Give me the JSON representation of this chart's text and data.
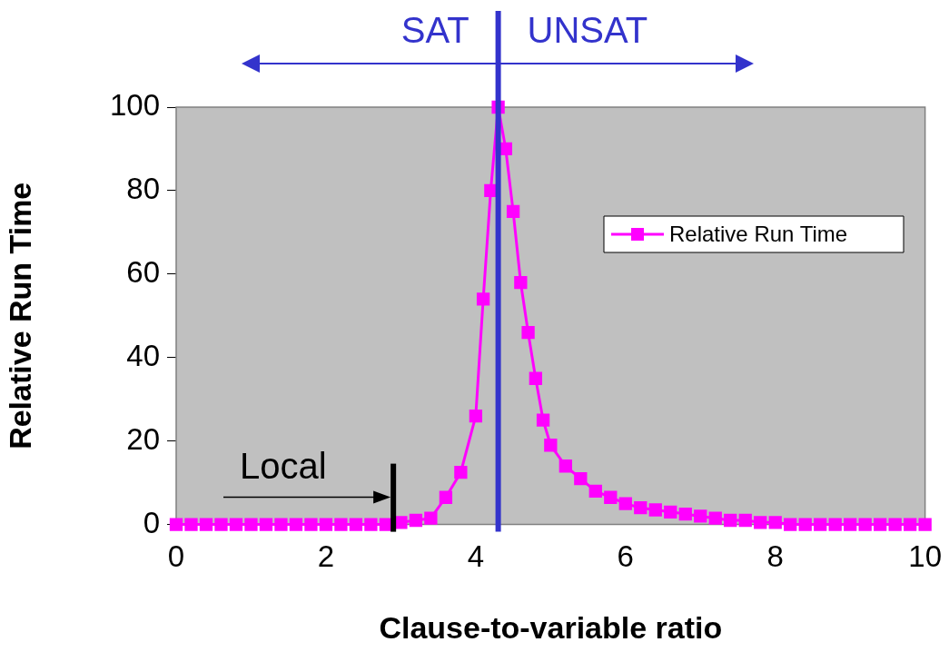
{
  "chart_data": {
    "type": "line",
    "xlabel": "Clause-to-variable ratio",
    "ylabel": "Relative Run Time",
    "xlim": [
      0,
      10
    ],
    "xticks": [
      0,
      2,
      4,
      6,
      8,
      10
    ],
    "ylim": [
      0,
      100
    ],
    "yticks": [
      0,
      20,
      40,
      60,
      80,
      100
    ],
    "grid": false,
    "legend": "right",
    "marker": "square",
    "line_style": "solid",
    "series": [
      {
        "name": "Relative Run Time",
        "color": "#ff00ff",
        "x": [
          0,
          0.2,
          0.4,
          0.6,
          0.8,
          1,
          1.2,
          1.4,
          1.6,
          1.8,
          2,
          2.2,
          2.4,
          2.6,
          2.8,
          3,
          3.2,
          3.4,
          3.6,
          3.8,
          4,
          4.1,
          4.2,
          4.3,
          4.4,
          4.5,
          4.6,
          4.7,
          4.8,
          4.9,
          5,
          5.2,
          5.4,
          5.6,
          5.8,
          6,
          6.2,
          6.4,
          6.6,
          6.8,
          7,
          7.2,
          7.4,
          7.6,
          7.8,
          8,
          8.2,
          8.4,
          8.6,
          8.8,
          9,
          9.2,
          9.4,
          9.6,
          9.8,
          10
        ],
        "values": [
          0,
          0,
          0,
          0,
          0,
          0,
          0,
          0,
          0,
          0,
          0,
          0,
          0,
          0,
          0,
          0.5,
          1,
          1.5,
          6.5,
          12.5,
          26,
          54,
          80,
          100,
          90,
          75,
          58,
          46,
          35,
          25,
          19,
          14,
          11,
          8,
          6.5,
          5,
          4,
          3.5,
          3,
          2.5,
          2,
          1.5,
          1,
          1,
          0.5,
          0.5,
          0,
          0,
          0,
          0,
          0,
          0,
          0,
          0,
          0,
          0
        ]
      }
    ],
    "ref_lines": [
      {
        "axis": "x",
        "value": 4.3,
        "color": "#3333cc"
      },
      {
        "axis": "x",
        "value": 2.9,
        "label": "Local",
        "color": "#000000"
      }
    ],
    "annotations": [
      "SAT",
      "UNSAT"
    ]
  }
}
